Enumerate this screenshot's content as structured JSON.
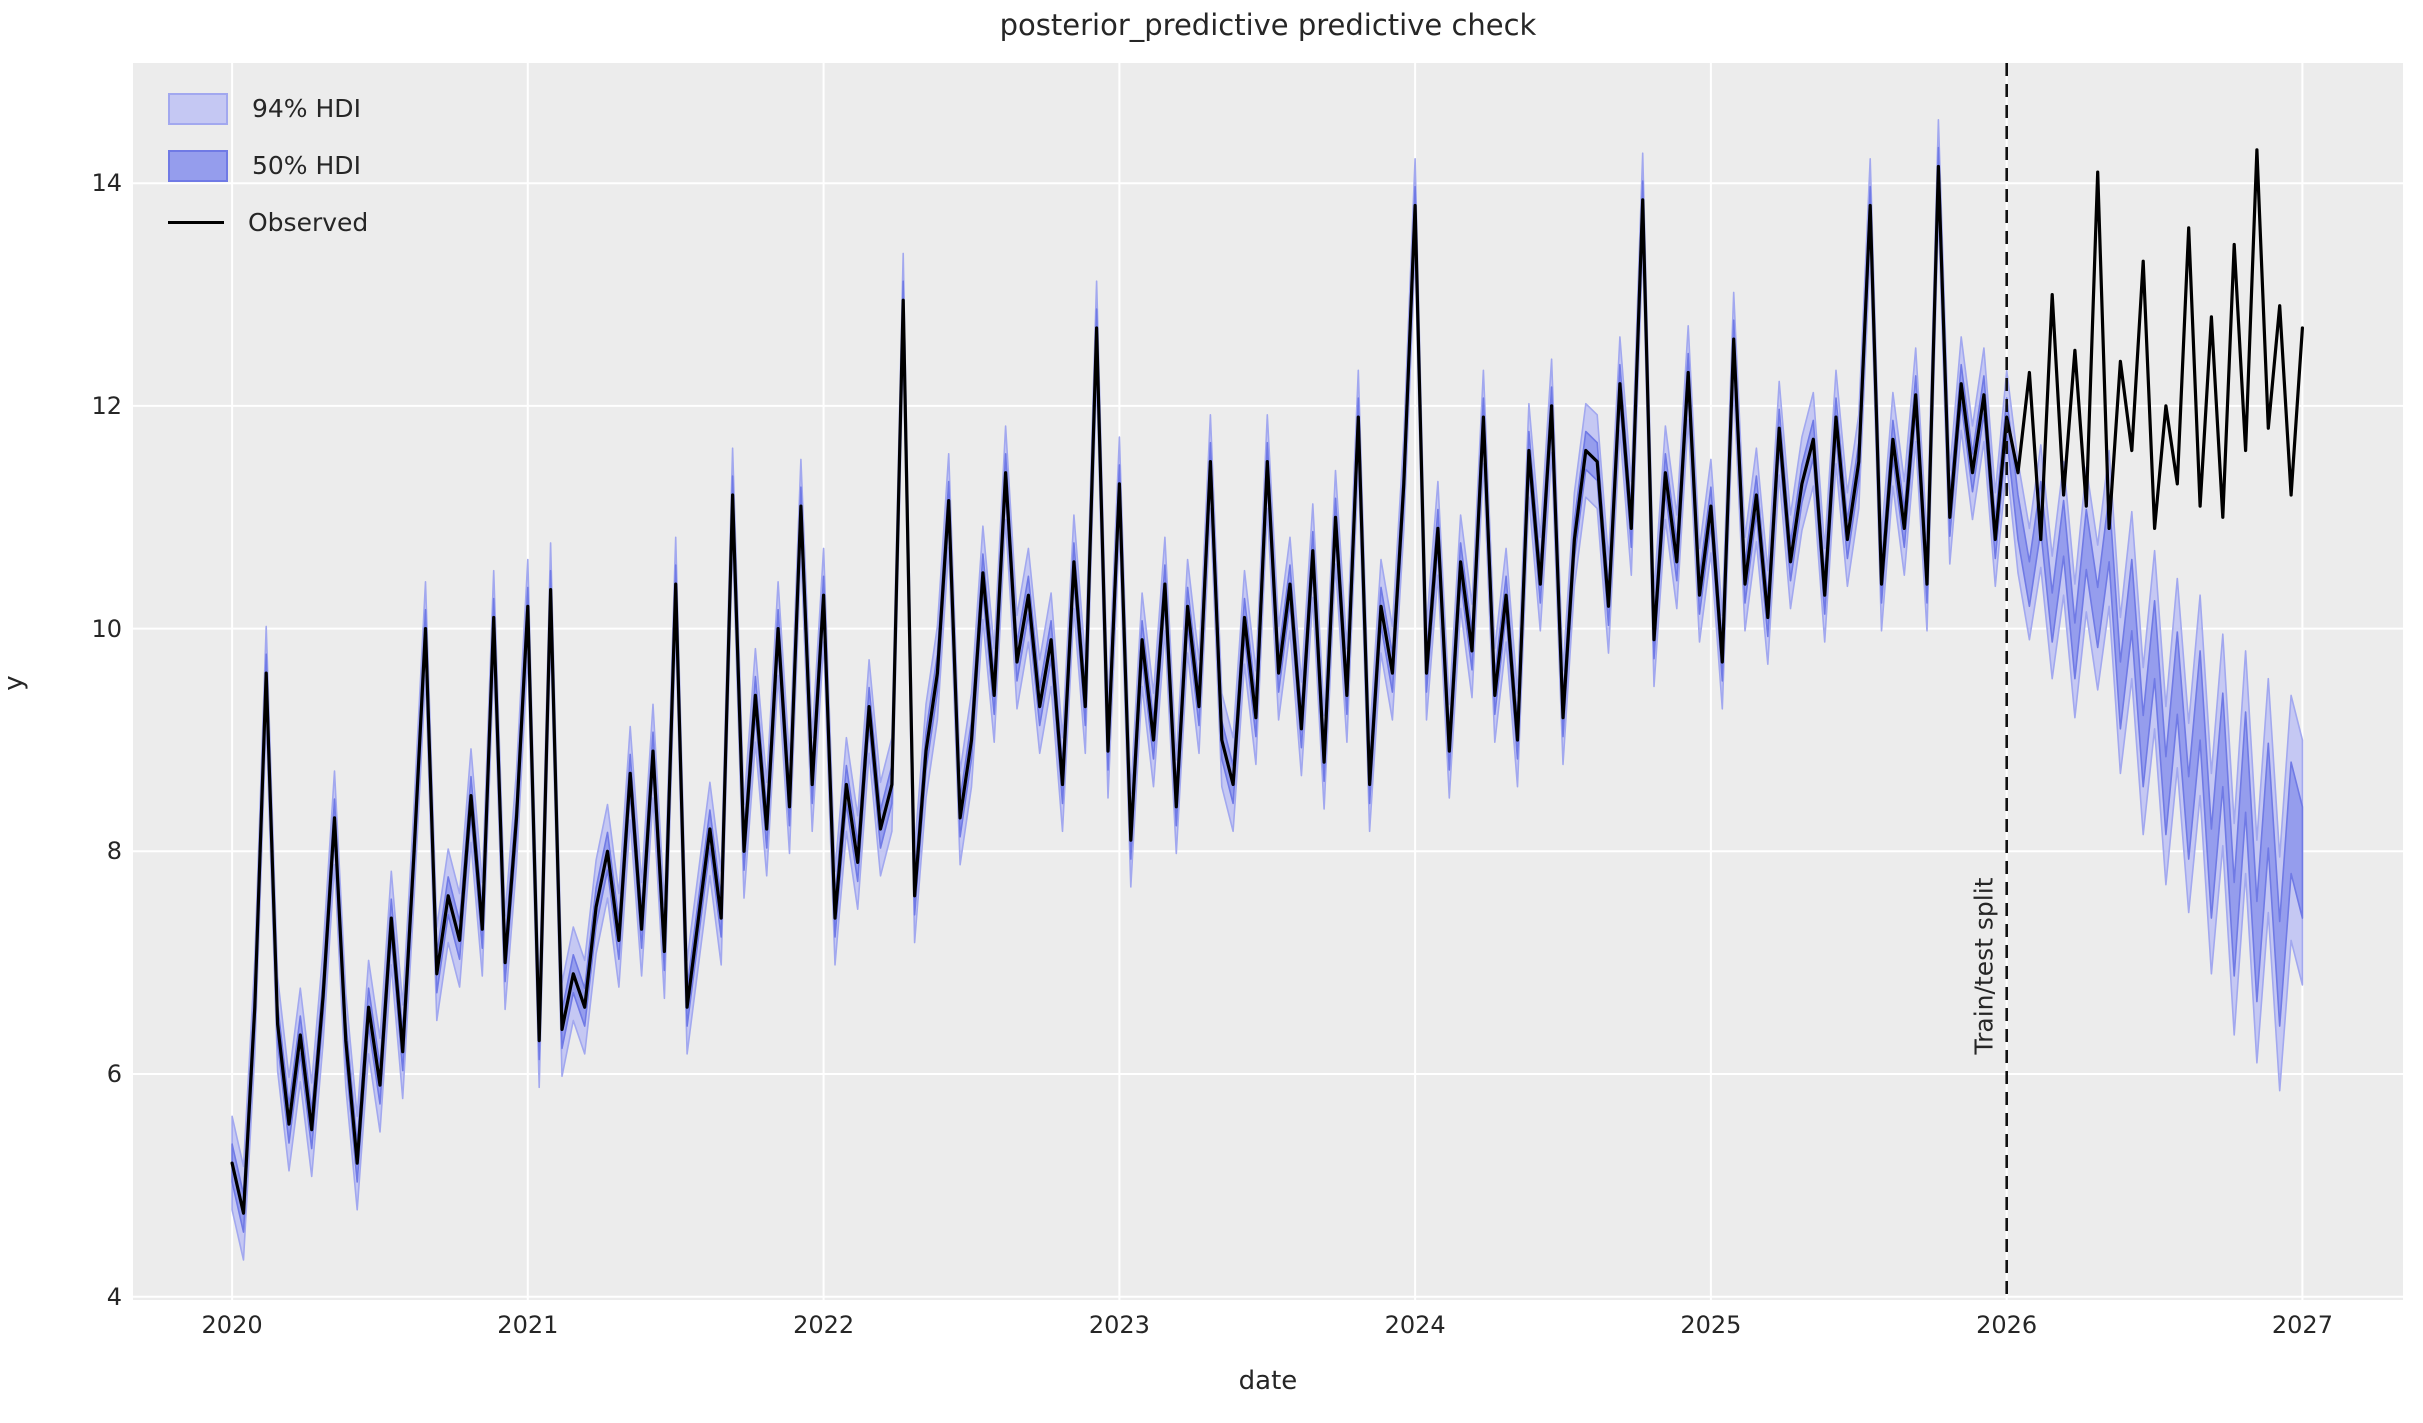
{
  "chart_data": {
    "type": "line",
    "title": "posterior_predictive predictive check",
    "xlabel": "date",
    "ylabel": "y",
    "axes": {
      "xlim": [
        2019.665,
        2027.34
      ],
      "ylim": [
        3.97,
        15.08
      ],
      "x_ticks": [
        2020,
        2021,
        2022,
        2023,
        2024,
        2025,
        2026,
        2027
      ],
      "y_ticks": [
        4,
        6,
        8,
        10,
        12,
        14
      ],
      "grid": true,
      "background": "#ececec",
      "gridline_color": "#ffffff"
    },
    "legend": [
      {
        "label": "94% HDI",
        "swatch": "patch"
      },
      {
        "label": "50% HDI",
        "swatch": "patch"
      },
      {
        "label": "Observed",
        "swatch": "line"
      }
    ],
    "annotations": [
      {
        "text": "Train/test split",
        "x": 2026.0,
        "rotation_deg": 90
      }
    ],
    "split_line": {
      "x": 2026.0,
      "style": "dashed",
      "color": "#111111"
    },
    "colors": {
      "hdi94_fill": "#c5c8f3",
      "hdi94_edge": "#a2a8ef",
      "hdi50_fill": "#959ded",
      "hdi50_edge": "#707ae5",
      "observed_line": "#000000",
      "text": "#262626"
    },
    "series": {
      "x_start": 2020.0,
      "x_step_years": 0.0384615,
      "x_end": 2027.0,
      "n_points": 183,
      "split_index": 156,
      "observed": [
        5.2,
        4.75,
        6.6,
        9.6,
        6.45,
        5.55,
        6.35,
        5.5,
        6.7,
        8.3,
        6.3,
        5.2,
        6.6,
        5.9,
        7.4,
        6.2,
        8.0,
        10.0,
        6.9,
        7.6,
        7.2,
        8.5,
        7.3,
        10.1,
        7.0,
        8.3,
        10.2,
        6.3,
        10.35,
        6.4,
        6.9,
        6.6,
        7.5,
        8.0,
        7.2,
        8.7,
        7.3,
        8.9,
        7.1,
        10.4,
        6.6,
        7.4,
        8.2,
        7.4,
        11.2,
        8.0,
        9.4,
        8.2,
        10.0,
        8.4,
        11.1,
        8.6,
        10.3,
        7.4,
        8.6,
        7.9,
        9.3,
        8.2,
        8.6,
        12.95,
        7.6,
        8.9,
        9.6,
        11.15,
        8.3,
        9.0,
        10.5,
        9.4,
        11.4,
        9.7,
        10.3,
        9.3,
        9.9,
        8.6,
        10.6,
        9.3,
        12.7,
        8.9,
        11.3,
        8.1,
        9.9,
        9.0,
        10.4,
        8.4,
        10.2,
        9.3,
        11.5,
        9.0,
        8.6,
        10.1,
        9.2,
        11.5,
        9.6,
        10.4,
        9.1,
        10.7,
        8.8,
        11.0,
        9.4,
        11.9,
        8.6,
        10.2,
        9.6,
        11.3,
        13.8,
        9.6,
        10.9,
        8.9,
        10.6,
        9.8,
        11.9,
        9.4,
        10.3,
        9.0,
        11.6,
        10.4,
        12.0,
        9.2,
        10.8,
        11.6,
        11.5,
        10.2,
        12.2,
        10.9,
        13.85,
        9.9,
        11.4,
        10.6,
        12.3,
        10.3,
        11.1,
        9.7,
        12.6,
        10.4,
        11.2,
        10.1,
        11.8,
        10.6,
        11.3,
        11.7,
        10.3,
        11.9,
        10.8,
        11.5,
        13.8,
        10.4,
        11.7,
        10.9,
        12.1,
        10.4,
        14.15,
        11.0,
        12.2,
        11.4,
        12.1,
        10.8,
        11.9,
        11.4,
        12.3,
        10.8,
        13.0,
        11.2,
        12.5,
        11.1,
        14.1,
        10.9,
        12.4,
        11.6,
        13.3,
        10.9,
        12.0,
        11.3,
        13.6,
        11.1,
        12.8,
        11.0,
        13.45,
        11.6,
        14.3,
        11.8,
        12.9,
        11.2,
        12.7
      ],
      "predicted_mean_test_from_index_157": [
        11.0,
        10.4,
        11.1,
        10.1,
        10.9,
        9.8,
        10.8,
        10.1,
        10.9,
        9.4,
        10.3,
        8.9,
        9.9,
        8.5,
        9.6,
        8.3,
        9.4,
        7.8,
        9.0,
        7.3,
        8.8,
        7.1,
        8.5,
        6.9,
        8.3,
        7.9
      ],
      "hdi94_halfwidth_train": 0.42,
      "hdi50_halfwidth_train": 0.17,
      "hdi94_halfwidth_test": [
        0.5,
        0.5,
        0.55,
        0.55,
        0.6,
        0.6,
        0.65,
        0.65,
        0.7,
        0.7,
        0.75,
        0.75,
        0.8,
        0.8,
        0.85,
        0.85,
        0.9,
        0.9,
        0.95,
        0.95,
        1.0,
        1.0,
        1.05,
        1.05,
        1.1,
        1.1
      ],
      "hdi50_halfwidth_test": [
        0.2,
        0.2,
        0.22,
        0.22,
        0.25,
        0.25,
        0.27,
        0.27,
        0.3,
        0.3,
        0.32,
        0.32,
        0.35,
        0.35,
        0.37,
        0.37,
        0.4,
        0.4,
        0.42,
        0.42,
        0.45,
        0.45,
        0.47,
        0.47,
        0.5,
        0.5
      ]
    }
  }
}
